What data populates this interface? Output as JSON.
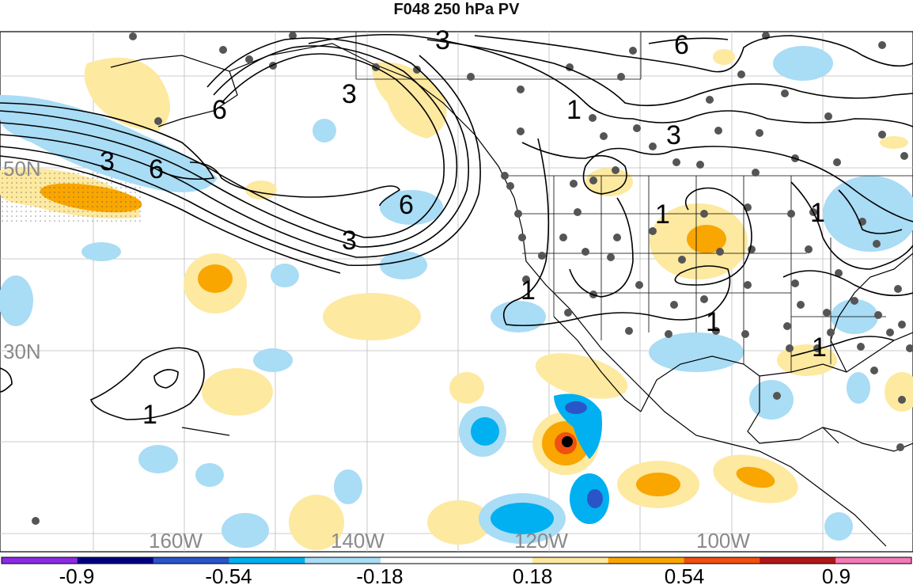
{
  "title": "F048 250 hPa PV",
  "lat_labels": [
    "50N",
    "30N"
  ],
  "lon_labels": [
    "160W",
    "140W",
    "120W",
    "100W"
  ],
  "contour_labels": [
    "3",
    "6",
    "1"
  ],
  "colorbar": {
    "colors": [
      "#8a2be2",
      "#000080",
      "#2a55c8",
      "#00b0f0",
      "#a9dcf5",
      "#ffffff",
      "#ffffff",
      "#fde9a0",
      "#f9a600",
      "#f05010",
      "#b01818",
      "#f57ab8"
    ],
    "tick_labels": [
      "-0.9",
      "-0.54",
      "-0.18",
      "0.18",
      "0.54",
      "0.9"
    ]
  },
  "storm_marker": "hurricane-center"
}
